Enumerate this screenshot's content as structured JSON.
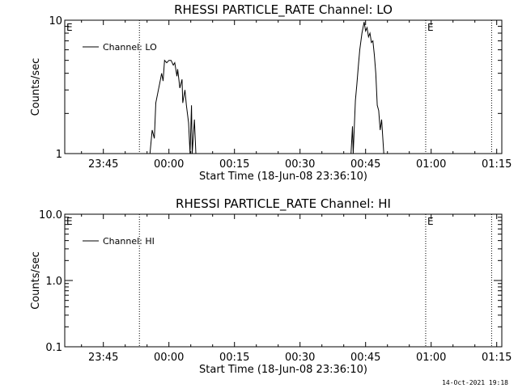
{
  "colors": {
    "background": "#ffffff",
    "foreground": "#000000"
  },
  "footer": {
    "stamp": "14-Oct-2021 19:18"
  },
  "chart_data": [
    {
      "type": "line",
      "title": "RHESSI PARTICLE_RATE Channel: LO",
      "xlabel": "Start Time (18-Jun-08 23:36:10)",
      "ylabel": "Counts/sec",
      "yscale": "log",
      "ylim": [
        1,
        10
      ],
      "xlim": [
        "23:36:10",
        "01:16:10"
      ],
      "x_ticks": [
        "23:45",
        "00:00",
        "00:15",
        "00:30",
        "00:45",
        "01:00",
        "01:15"
      ],
      "y_ticks": [
        "1",
        "10"
      ],
      "legend": {
        "position": "top-left",
        "entries": [
          "Channel: LO"
        ]
      },
      "annotations": [
        "E",
        "E"
      ],
      "markers": [
        "23:53:15",
        "00:58:45",
        "01:13:50"
      ],
      "e_markers": [
        "23:36:10",
        "00:58:45"
      ],
      "series": [
        {
          "name": "Channel: LO",
          "points": [
            [
              "23:55:40",
              1.0
            ],
            [
              "23:56:10",
              1.5
            ],
            [
              "23:56:40",
              1.3
            ],
            [
              "23:57:00",
              2.4
            ],
            [
              "23:57:30",
              2.9
            ],
            [
              "23:58:00",
              3.5
            ],
            [
              "23:58:20",
              4.0
            ],
            [
              "23:58:40",
              3.5
            ],
            [
              "23:59:00",
              5.0
            ],
            [
              "23:59:30",
              4.8
            ],
            [
              "00:00:00",
              5.0
            ],
            [
              "00:00:30",
              5.0
            ],
            [
              "00:01:00",
              4.6
            ],
            [
              "00:01:20",
              4.8
            ],
            [
              "00:01:50",
              3.8
            ],
            [
              "00:02:00",
              4.3
            ],
            [
              "00:02:30",
              3.1
            ],
            [
              "00:03:00",
              3.6
            ],
            [
              "00:03:10",
              2.4
            ],
            [
              "00:03:40",
              3.0
            ],
            [
              "00:04:00",
              2.3
            ],
            [
              "00:04:30",
              1.7
            ],
            [
              "00:04:50",
              1.0
            ],
            [
              "00:05:10",
              2.3
            ],
            [
              "00:05:20",
              1.0
            ],
            [
              "00:05:50",
              1.8
            ],
            [
              "00:06:10",
              1.0
            ],
            [
              "00:41:40",
              1.0
            ],
            [
              "00:42:00",
              1.6
            ],
            [
              "00:42:10",
              1.0
            ],
            [
              "00:42:40",
              2.5
            ],
            [
              "00:43:00",
              3.3
            ],
            [
              "00:43:20",
              4.5
            ],
            [
              "00:43:40",
              6.0
            ],
            [
              "00:44:10",
              8.0
            ],
            [
              "00:44:40",
              9.7
            ],
            [
              "00:45:00",
              8.3
            ],
            [
              "00:45:20",
              8.8
            ],
            [
              "00:45:40",
              7.5
            ],
            [
              "00:46:00",
              8.0
            ],
            [
              "00:46:20",
              6.8
            ],
            [
              "00:46:40",
              7.0
            ],
            [
              "00:47:00",
              5.5
            ],
            [
              "00:47:20",
              4.0
            ],
            [
              "00:47:40",
              2.3
            ],
            [
              "00:48:00",
              2.1
            ],
            [
              "00:48:20",
              1.5
            ],
            [
              "00:48:40",
              1.8
            ],
            [
              "00:49:10",
              1.0
            ]
          ]
        }
      ]
    },
    {
      "type": "line",
      "title": "RHESSI PARTICLE_RATE Channel: HI",
      "xlabel": "Start Time (18-Jun-08 23:36:10)",
      "ylabel": "Counts/sec",
      "yscale": "log",
      "ylim": [
        0.1,
        10
      ],
      "xlim": [
        "23:36:10",
        "01:16:10"
      ],
      "x_ticks": [
        "23:45",
        "00:00",
        "00:15",
        "00:30",
        "00:45",
        "01:00",
        "01:15"
      ],
      "y_ticks": [
        "0.1",
        "1.0",
        "10.0"
      ],
      "legend": {
        "position": "top-left",
        "entries": [
          "Channel: HI"
        ]
      },
      "annotations": [
        "E",
        "E"
      ],
      "markers": [
        "23:53:15",
        "00:58:45",
        "01:13:50"
      ],
      "e_markers": [
        "23:36:10",
        "00:58:45"
      ],
      "series": [
        {
          "name": "Channel: HI",
          "points": []
        }
      ]
    }
  ]
}
